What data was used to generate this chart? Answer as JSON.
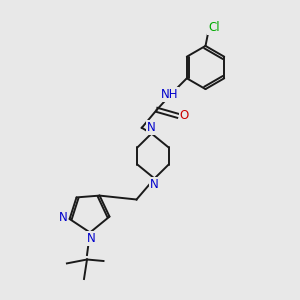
{
  "bg_color": "#e8e8e8",
  "bond_color": "#1a1a1a",
  "N_color": "#0000cc",
  "O_color": "#cc0000",
  "Cl_color": "#00aa00",
  "H_color": "#6699aa",
  "figsize": [
    3.0,
    3.0
  ],
  "dpi": 100,
  "xlim": [
    0,
    10
  ],
  "ylim": [
    0,
    10
  ]
}
